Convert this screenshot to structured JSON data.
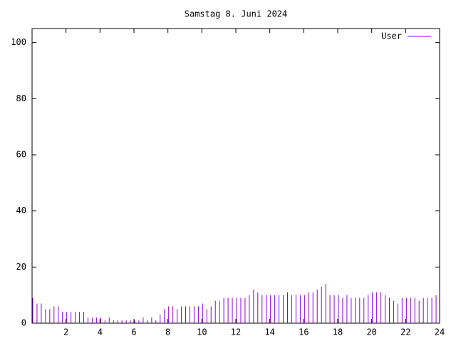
{
  "chart_data": {
    "type": "impulses",
    "title": "Samstag 8. Juni 2024",
    "x": [
      0,
      0.25,
      0.5,
      0.75,
      1,
      1.25,
      1.5,
      1.75,
      2,
      2.25,
      2.5,
      2.75,
      3,
      3.25,
      3.5,
      3.75,
      4,
      4.25,
      4.5,
      4.75,
      5,
      5.25,
      5.5,
      5.75,
      6,
      6.25,
      6.5,
      6.75,
      7,
      7.25,
      7.5,
      7.75,
      8,
      8.25,
      8.5,
      8.75,
      9,
      9.25,
      9.5,
      9.75,
      10,
      10.25,
      10.5,
      10.75,
      11,
      11.25,
      11.5,
      11.75,
      12,
      12.25,
      12.5,
      12.75,
      13,
      13.25,
      13.5,
      13.75,
      14,
      14.25,
      14.5,
      14.75,
      15,
      15.25,
      15.5,
      15.75,
      16,
      16.25,
      16.5,
      16.75,
      17,
      17.25,
      17.5,
      17.75,
      18,
      18.25,
      18.5,
      18.75,
      19,
      19.25,
      19.5,
      19.75,
      20,
      20.25,
      20.5,
      20.75,
      21,
      21.25,
      21.5,
      21.75,
      22,
      22.25,
      22.5,
      22.75,
      23,
      23.25,
      23.5,
      23.75
    ],
    "series": [
      {
        "name": "User",
        "color": "#9400d3",
        "values": [
          9,
          7,
          7,
          5,
          5,
          6,
          6,
          4,
          4,
          4,
          4,
          4,
          4,
          2,
          2,
          2,
          2,
          1,
          2,
          1,
          1,
          1,
          1,
          1,
          1,
          1,
          2,
          1,
          2,
          1,
          3,
          5,
          6,
          6,
          5,
          6,
          6,
          6,
          6,
          6,
          7,
          5,
          6,
          8,
          8,
          9,
          9,
          9,
          9,
          9,
          9,
          10,
          12,
          11,
          10,
          10,
          10,
          10,
          10,
          10,
          11,
          10,
          10,
          10,
          10,
          11,
          11,
          12,
          13,
          14,
          10,
          10,
          10,
          9,
          10,
          9,
          9,
          9,
          9,
          10,
          11,
          11,
          11,
          10,
          9,
          8,
          7,
          9,
          9,
          9,
          9,
          8,
          9,
          9,
          9,
          10
        ]
      }
    ],
    "xlim": [
      0,
      24
    ],
    "xticks": [
      2,
      4,
      6,
      8,
      10,
      12,
      14,
      16,
      18,
      20,
      22,
      24
    ],
    "ylim": [
      0,
      105
    ],
    "yticks": [
      0,
      20,
      40,
      60,
      80,
      100
    ],
    "legend": "top-right"
  }
}
